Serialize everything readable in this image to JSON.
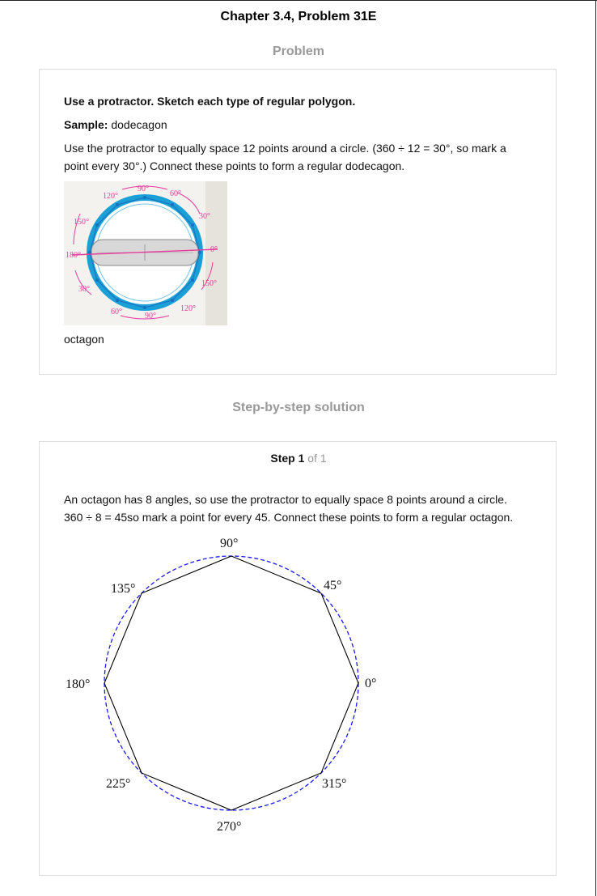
{
  "page": {
    "chapter_title": "Chapter 3.4, Problem 31E",
    "problem_heading": "Problem",
    "solution_heading": "Step-by-step solution"
  },
  "problem": {
    "instruction": "Use a protractor. Sketch each type of regular polygon.",
    "sample_label": "Sample:",
    "sample_value": " dodecagon",
    "sample_explanation": "Use the protractor to equally space 12 points around a circle. (360 ÷ 12 = 30°, so mark a point every 30°.) Connect these points to form a regular dodecagon.",
    "task": "octagon",
    "figure": {
      "angle_labels": [
        "90°",
        "60°",
        "30°",
        "0°",
        "150°",
        "120°",
        "90°",
        "60°",
        "30°",
        "180°",
        "150°",
        "120°"
      ],
      "colors": {
        "protractor_blue": "#1a9fd6",
        "arrow_pink": "#e8399a",
        "paper": "#f4f2ee"
      }
    }
  },
  "solution": {
    "step_word": "Step",
    "step_number": "1",
    "step_of": "of 1",
    "text_line1": "An octagon has 8 angles, so use the protractor to equally space 8 points around a circle.",
    "text_line2": "360 ÷ 8 = 45so mark a point for every 45. Connect these points to form a regular octagon.",
    "figure": {
      "vertex_labels": [
        "90°",
        "45°",
        "0°",
        "315°",
        "270°",
        "225°",
        "180°",
        "135°"
      ],
      "colors": {
        "circle": "#1a1aff",
        "polygon": "#000000"
      }
    }
  }
}
